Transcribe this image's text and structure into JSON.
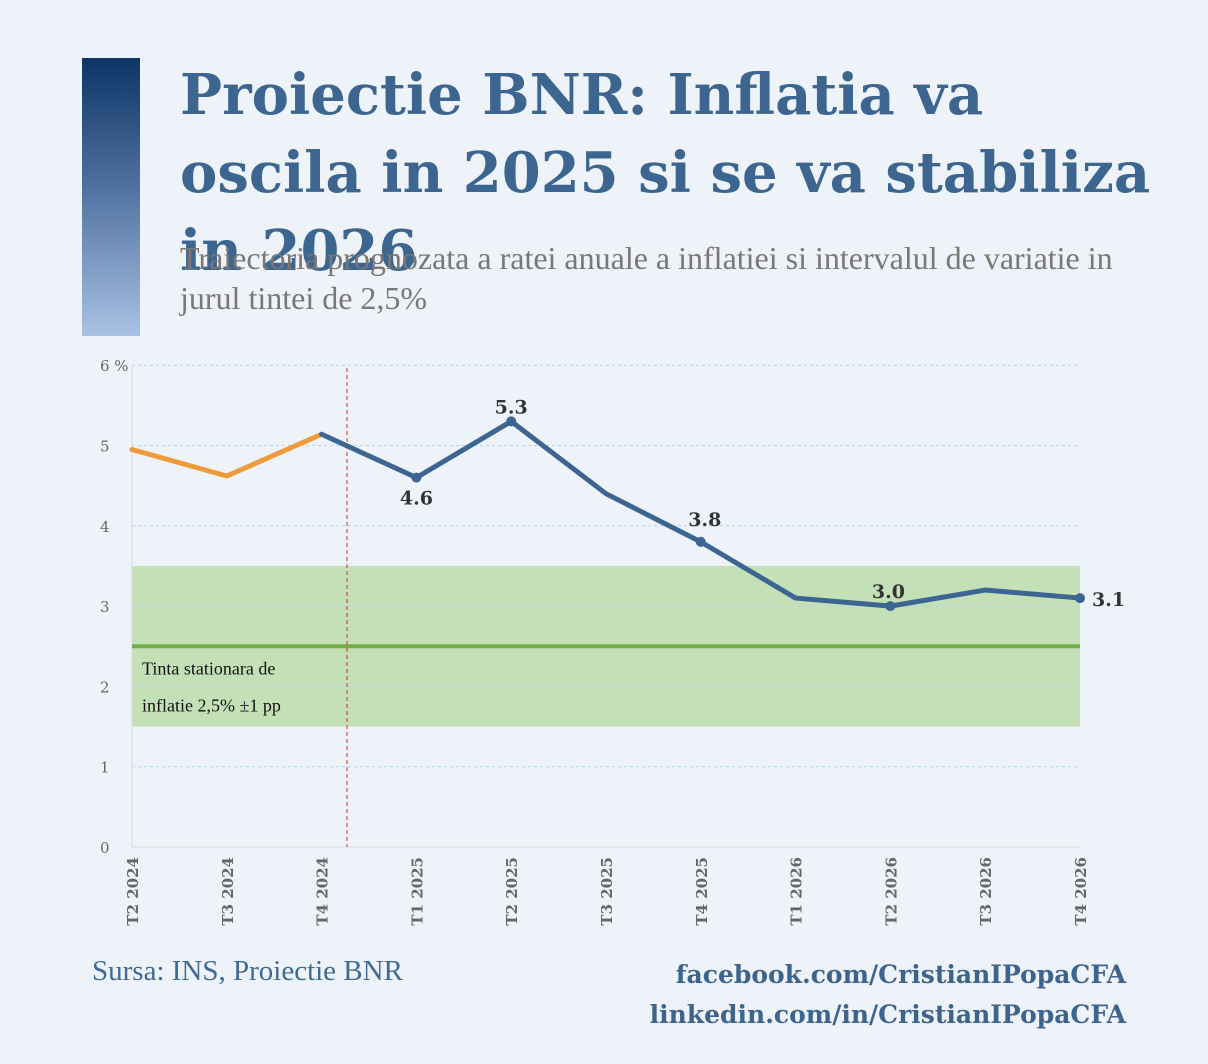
{
  "title": "Proiectie BNR: Inflatia va oscila in 2025 si se va stabiliza in 2026",
  "subtitle": "Traiectoria prognozata a ratei anuale a inflatiei si intervalul de variatie in jurul tintei de 2,5%",
  "source": "Sursa: INS, Proiectie BNR",
  "social": {
    "facebook": "facebook.com/CristianIPopaCFA",
    "linkedin": "linkedin.com/in/CristianIPopaCFA"
  },
  "colors": {
    "historical": "#ef9a3b",
    "projection": "#3d6591",
    "band": "#c3e0b7",
    "target": "#70ad47",
    "divider": "#c0392b"
  },
  "chart_data": {
    "type": "line",
    "categories": [
      "T2 2024",
      "T3 2024",
      "T4 2024",
      "T1 2025",
      "T2 2025",
      "T3 2025",
      "T4 2025",
      "T1 2026",
      "T2 2026",
      "T3 2026",
      "T4 2026"
    ],
    "series": [
      {
        "values": [
          4.95,
          4.62,
          5.14,
          null,
          null,
          null,
          null,
          null,
          null,
          null,
          null
        ]
      },
      {
        "values": [
          null,
          null,
          5.14,
          4.6,
          5.3,
          4.4,
          3.8,
          3.1,
          3.0,
          3.2,
          3.1
        ]
      }
    ],
    "data_labels": [
      {
        "category": "T1 2025",
        "text": "4.6"
      },
      {
        "category": "T2 2025",
        "text": "5.3"
      },
      {
        "category": "T4 2025",
        "text": "3.8"
      },
      {
        "category": "T2 2026",
        "text": "3.0"
      },
      {
        "category": "T4 2026",
        "text": "3.1"
      }
    ],
    "yticks": [
      "0",
      "1",
      "2",
      "3",
      "4",
      "5",
      "6 %"
    ],
    "ylim": [
      0,
      6
    ],
    "target": 2.5,
    "band": [
      1.5,
      3.5
    ],
    "band_label": [
      "Tinta stationara de",
      "inflatie 2,5% ±1 pp"
    ],
    "forecast_divider_after": "T4 2024",
    "grid": true
  }
}
